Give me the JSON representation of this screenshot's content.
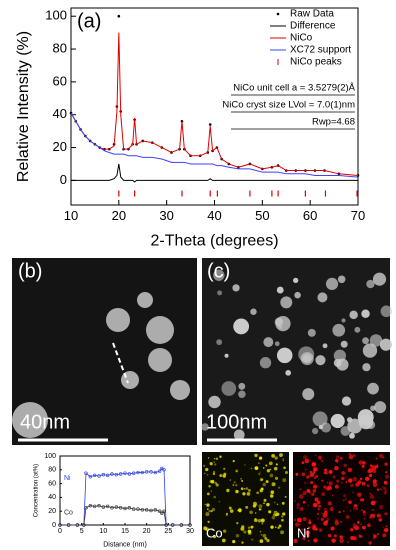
{
  "chart_data": [
    {
      "type": "line",
      "panel": "(a)",
      "xlabel": "2-Theta (degrees)",
      "ylabel": "Relative Intensity (%)",
      "x": [
        10,
        11,
        12,
        13,
        14,
        15,
        16,
        17,
        18,
        19,
        19.6,
        20,
        20.4,
        21,
        22,
        22.9,
        23.3,
        23.7,
        25,
        27,
        29,
        31,
        32.7,
        33.2,
        33.7,
        35,
        37,
        38.6,
        39.1,
        39.6,
        40.5,
        41.5,
        43,
        45,
        47.4,
        50,
        52,
        53.3,
        55,
        57,
        59,
        61,
        63,
        66,
        70
      ],
      "series": [
        {
          "name": "Raw Data",
          "color": "#000000",
          "style": "points",
          "values": [
            41,
            36,
            31,
            27,
            24,
            22,
            20,
            19,
            19,
            22,
            45,
            100,
            42,
            19,
            19,
            22,
            37,
            22,
            24,
            23,
            20,
            17,
            19,
            36,
            19,
            15,
            15,
            17,
            34,
            18,
            20,
            13,
            10,
            8,
            10,
            7,
            8,
            9,
            6,
            6,
            6,
            6,
            6,
            4,
            3
          ]
        },
        {
          "name": "Difference",
          "color": "#000000",
          "style": "line",
          "values": [
            0,
            0,
            0,
            0,
            0,
            0,
            0,
            0,
            0,
            1,
            3,
            10,
            2,
            0,
            0,
            0,
            -1,
            0,
            0,
            0,
            0,
            0,
            0,
            0,
            0,
            0,
            0,
            0,
            1,
            0,
            0,
            0,
            0,
            0,
            0,
            0,
            0,
            0,
            0,
            0,
            0,
            0,
            0,
            0,
            0
          ]
        },
        {
          "name": "NiCo",
          "color": "#e00000",
          "style": "line",
          "values": [
            41,
            36,
            31,
            27,
            24,
            22,
            20,
            19,
            19,
            21,
            42,
            90,
            40,
            19,
            19,
            22,
            38,
            22,
            24,
            23,
            20,
            17,
            19,
            36,
            19,
            15,
            15,
            17,
            33,
            18,
            20,
            13,
            10,
            8,
            10,
            7,
            8,
            9,
            6,
            6,
            6,
            6,
            6,
            4,
            3
          ]
        },
        {
          "name": "XC72 support",
          "color": "#4040ff",
          "style": "line",
          "values": [
            41,
            36,
            31,
            27,
            24,
            22,
            20,
            18,
            17,
            16,
            16,
            16,
            16,
            16,
            15,
            15,
            15,
            15,
            14,
            14,
            13,
            11,
            11,
            11,
            11,
            10,
            10,
            10,
            10,
            10,
            9,
            9,
            8,
            7,
            7,
            5,
            5,
            5,
            4,
            4,
            4,
            3,
            3,
            3,
            2
          ]
        },
        {
          "name": "NiCo peaks",
          "color": "#e00000",
          "style": "peaks",
          "x": [
            20,
            23.3,
            33.2,
            39.1,
            40.6,
            47.4,
            52,
            53.3,
            59,
            63.2,
            69.8
          ],
          "values": [
            -8,
            -8,
            -8,
            -8,
            -8,
            -8,
            -8,
            -8,
            -8,
            -8,
            -8
          ]
        }
      ],
      "annotations": [
        "NiCo unit cell a = 3.5279(2)Å",
        "NiCo cryst size LVol = 7.0(1)nm",
        "Rwp=4.68"
      ],
      "xlim": [
        10,
        70
      ],
      "xticks": [
        10,
        20,
        30,
        40,
        50,
        60,
        70
      ],
      "ylim": [
        -15,
        105
      ],
      "yticks": [
        0,
        20,
        40,
        60,
        80,
        100
      ],
      "legend": "upper right"
    },
    {
      "type": "line",
      "xlabel": "Distance (nm)",
      "ylabel": "Concentration (at%)",
      "x": [
        0,
        2,
        4,
        5.5,
        6,
        7,
        8,
        9,
        10,
        11,
        12,
        13,
        14,
        15,
        16,
        17,
        18,
        19,
        20,
        21,
        22,
        23,
        23.5,
        24,
        24.5,
        26,
        28,
        30
      ],
      "series": [
        {
          "name": "Ni",
          "color": "#2f3fe0",
          "style": "line-markers",
          "values": [
            0,
            0,
            0,
            0,
            75,
            70,
            72,
            71,
            73,
            72,
            74,
            73,
            74,
            75,
            74,
            75,
            76,
            76,
            77,
            77,
            76,
            78,
            82,
            80,
            0,
            0,
            0,
            0
          ]
        },
        {
          "name": "Co",
          "color": "#333333",
          "style": "line-markers",
          "values": [
            0,
            0,
            0,
            0,
            25,
            28,
            27,
            28,
            26,
            27,
            25,
            26,
            25,
            24,
            25,
            23,
            23,
            22,
            22,
            21,
            22,
            20,
            17,
            20,
            0,
            0,
            0,
            0
          ]
        }
      ],
      "xlim": [
        0,
        30
      ],
      "xticks": [
        0,
        5,
        10,
        15,
        20,
        25,
        30
      ],
      "ylim": [
        0,
        100
      ],
      "yticks": [
        0,
        20,
        40,
        60,
        80,
        100
      ],
      "legend": "left"
    }
  ],
  "images": {
    "b": {
      "label": "(b)",
      "scale_bar": "40nm"
    },
    "c": {
      "label": "(c)",
      "scale_bar": "100nm"
    },
    "co_map": "Co",
    "ni_map": "Ni"
  }
}
